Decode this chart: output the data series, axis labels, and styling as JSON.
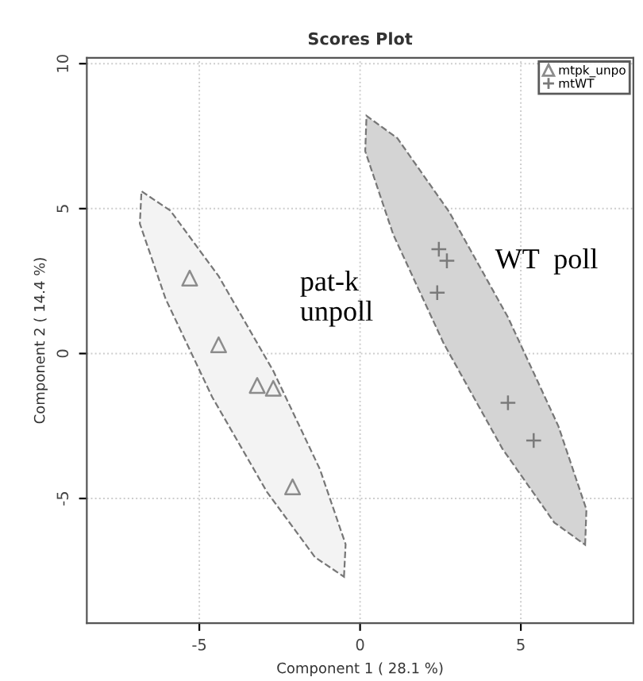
{
  "chart_data": {
    "type": "scatter",
    "title": "Scores Plot",
    "xlabel": "Component 1 ( 28.1 %)",
    "ylabel": "Component 2 ( 14.4 %)",
    "xlim": [
      -8.5,
      8.5
    ],
    "ylim": [
      -9.3,
      10.2
    ],
    "xticks": [
      -5,
      0,
      5
    ],
    "yticks": [
      -5,
      0,
      5,
      10
    ],
    "grid": true,
    "legend": "top right",
    "series": [
      {
        "type": "area",
        "color": "#f3f3f3",
        "line_style": "dashed",
        "x": [
          -0.5,
          -0.45,
          -1.25,
          -2.7,
          -4.4,
          -5.9,
          -6.8,
          -6.85,
          -6.05,
          -4.6,
          -2.9,
          -1.4
        ],
        "values": [
          -7.7,
          -6.58,
          -3.99,
          -0.6,
          2.67,
          4.93,
          5.6,
          4.48,
          1.89,
          -1.5,
          -4.77,
          -7.03
        ]
      },
      {
        "type": "area",
        "color": "#d4d4d4",
        "line_style": "dashed",
        "x": [
          7.0,
          7.04,
          6.17,
          4.6,
          2.77,
          1.16,
          0.2,
          0.16,
          1.03,
          2.6,
          4.43,
          6.04
        ],
        "values": [
          -6.6,
          -5.38,
          -2.51,
          1.25,
          4.89,
          7.43,
          8.2,
          6.98,
          4.11,
          0.35,
          -3.29,
          -5.83
        ]
      },
      {
        "name": "mtpk_unpo",
        "marker": "triangle",
        "color": "#8c8c8c",
        "x": [
          -5.3,
          -4.4,
          -3.2,
          -2.7,
          -2.1
        ],
        "values": [
          2.6,
          0.3,
          -1.1,
          -1.2,
          -4.6
        ]
      },
      {
        "name": "mtWT",
        "marker": "cross",
        "color": "#7a7a7a",
        "x": [
          2.45,
          2.7,
          2.4,
          4.6,
          5.4
        ],
        "values": [
          3.6,
          3.2,
          2.1,
          -1.7,
          -3.0
        ]
      }
    ],
    "annotations": [
      "pat-k\nunpoll",
      "WT  poll"
    ]
  }
}
